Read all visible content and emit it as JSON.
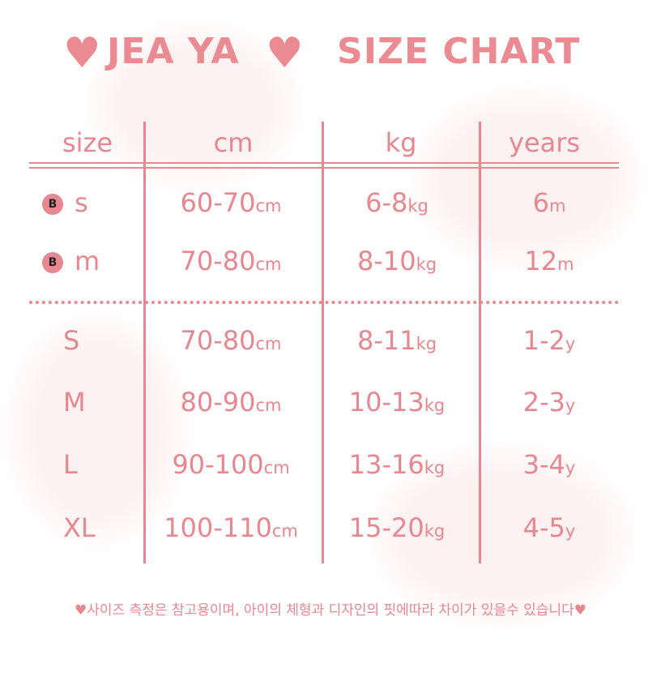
{
  "title": {
    "brand": "JEA YA",
    "subtitle": "SIZE CHART",
    "heart_icon": "heart-icon"
  },
  "colors": {
    "accent": "#e8878f"
  },
  "headers": [
    "size",
    "cm",
    "kg",
    "years"
  ],
  "baby_rows": [
    {
      "badge": "B",
      "size": "s",
      "cm": "60-70",
      "cm_unit": "cm",
      "kg": "6-8",
      "kg_unit": "kg",
      "age": "6",
      "age_unit": "m"
    },
    {
      "badge": "B",
      "size": "m",
      "cm": "70-80",
      "cm_unit": "cm",
      "kg": "8-10",
      "kg_unit": "kg",
      "age": "12",
      "age_unit": "m"
    }
  ],
  "kid_rows": [
    {
      "size": "S",
      "cm": "70-80",
      "cm_unit": "cm",
      "kg": "8-11",
      "kg_unit": "kg",
      "age": "1-2",
      "age_unit": "y"
    },
    {
      "size": "M",
      "cm": "80-90",
      "cm_unit": "cm",
      "kg": "10-13",
      "kg_unit": "kg",
      "age": "2-3",
      "age_unit": "y"
    },
    {
      "size": "L",
      "cm": "90-100",
      "cm_unit": "cm",
      "kg": "13-16",
      "kg_unit": "kg",
      "age": "3-4",
      "age_unit": "y"
    },
    {
      "size": "XL",
      "cm": "100-110",
      "cm_unit": "cm",
      "kg": "15-20",
      "kg_unit": "kg",
      "age": "4-5",
      "age_unit": "y"
    }
  ],
  "note": "♥사이즈 측정은 참고용이며, 아이의 체형과 디자인의 핏에따라 차이가 있을수 있습니다♥"
}
